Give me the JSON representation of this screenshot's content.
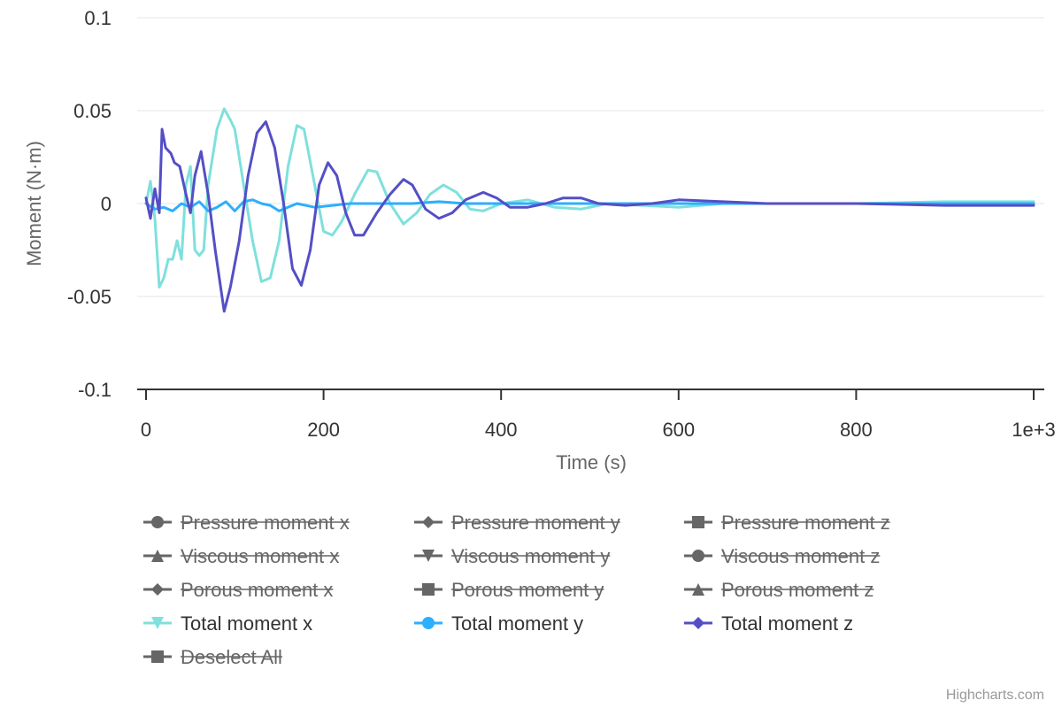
{
  "chart_data": {
    "type": "line",
    "xlabel": "Time (s)",
    "ylabel": "Moment (N·m)",
    "xlim": [
      0,
      1000
    ],
    "ylim": [
      -0.1,
      0.1
    ],
    "x_ticks": [
      "0",
      "200",
      "400",
      "600",
      "800",
      "1e+3"
    ],
    "y_ticks": [
      "0.1",
      "0.05",
      "0",
      "-0.05",
      "-0.1"
    ],
    "grid": "horizontal",
    "legend_placement": "bottom",
    "series": [
      {
        "name": "Total moment x",
        "color": "#7fe0dc",
        "visible": true,
        "marker": "triangle-down",
        "points": [
          [
            0,
            0.0
          ],
          [
            5,
            0.012
          ],
          [
            10,
            -0.008
          ],
          [
            15,
            -0.045
          ],
          [
            20,
            -0.04
          ],
          [
            25,
            -0.03
          ],
          [
            30,
            -0.03
          ],
          [
            35,
            -0.02
          ],
          [
            40,
            -0.03
          ],
          [
            45,
            0.01
          ],
          [
            50,
            0.02
          ],
          [
            55,
            -0.025
          ],
          [
            60,
            -0.028
          ],
          [
            65,
            -0.025
          ],
          [
            70,
            0.01
          ],
          [
            75,
            0.025
          ],
          [
            80,
            0.04
          ],
          [
            88,
            0.051
          ],
          [
            95,
            0.045
          ],
          [
            100,
            0.04
          ],
          [
            110,
            0.01
          ],
          [
            120,
            -0.02
          ],
          [
            130,
            -0.042
          ],
          [
            140,
            -0.04
          ],
          [
            150,
            -0.02
          ],
          [
            160,
            0.02
          ],
          [
            170,
            0.042
          ],
          [
            178,
            0.04
          ],
          [
            190,
            0.01
          ],
          [
            200,
            -0.015
          ],
          [
            210,
            -0.017
          ],
          [
            220,
            -0.01
          ],
          [
            235,
            0.005
          ],
          [
            250,
            0.018
          ],
          [
            260,
            0.017
          ],
          [
            275,
            0.0
          ],
          [
            290,
            -0.011
          ],
          [
            305,
            -0.005
          ],
          [
            320,
            0.005
          ],
          [
            335,
            0.01
          ],
          [
            350,
            0.006
          ],
          [
            365,
            -0.003
          ],
          [
            380,
            -0.004
          ],
          [
            400,
            0.0
          ],
          [
            430,
            0.002
          ],
          [
            460,
            -0.002
          ],
          [
            490,
            -0.003
          ],
          [
            520,
            0.0
          ],
          [
            560,
            -0.001
          ],
          [
            600,
            -0.002
          ],
          [
            650,
            0.0
          ],
          [
            700,
            0.0
          ],
          [
            800,
            0.0
          ],
          [
            900,
            0.001
          ],
          [
            1000,
            0.001
          ]
        ]
      },
      {
        "name": "Total moment y",
        "color": "#2caffe",
        "visible": true,
        "marker": "circle",
        "points": [
          [
            0,
            0.0
          ],
          [
            10,
            -0.003
          ],
          [
            20,
            -0.002
          ],
          [
            30,
            -0.004
          ],
          [
            40,
            0.0
          ],
          [
            50,
            -0.002
          ],
          [
            60,
            0.001
          ],
          [
            70,
            -0.004
          ],
          [
            80,
            -0.002
          ],
          [
            90,
            0.001
          ],
          [
            100,
            -0.004
          ],
          [
            110,
            0.001
          ],
          [
            120,
            0.002
          ],
          [
            130,
            0.0
          ],
          [
            140,
            -0.001
          ],
          [
            150,
            -0.004
          ],
          [
            170,
            0.0
          ],
          [
            190,
            -0.002
          ],
          [
            210,
            -0.001
          ],
          [
            230,
            0.0
          ],
          [
            250,
            0.0
          ],
          [
            280,
            0.0
          ],
          [
            300,
            0.0
          ],
          [
            330,
            0.001
          ],
          [
            360,
            0.0
          ],
          [
            400,
            0.0
          ],
          [
            500,
            0.0
          ],
          [
            600,
            0.0
          ],
          [
            700,
            0.0
          ],
          [
            800,
            0.0
          ],
          [
            900,
            0.0
          ],
          [
            1000,
            0.0
          ]
        ]
      },
      {
        "name": "Total moment z",
        "color": "#544fc5",
        "visible": true,
        "marker": "diamond",
        "points": [
          [
            0,
            0.003
          ],
          [
            5,
            -0.008
          ],
          [
            10,
            0.008
          ],
          [
            15,
            -0.005
          ],
          [
            18,
            0.04
          ],
          [
            22,
            0.03
          ],
          [
            28,
            0.027
          ],
          [
            32,
            0.022
          ],
          [
            38,
            0.02
          ],
          [
            45,
            0.005
          ],
          [
            50,
            -0.005
          ],
          [
            55,
            0.015
          ],
          [
            62,
            0.028
          ],
          [
            70,
            0.005
          ],
          [
            78,
            -0.025
          ],
          [
            88,
            -0.058
          ],
          [
            95,
            -0.045
          ],
          [
            105,
            -0.02
          ],
          [
            115,
            0.015
          ],
          [
            125,
            0.038
          ],
          [
            135,
            0.044
          ],
          [
            145,
            0.03
          ],
          [
            155,
            0.0
          ],
          [
            165,
            -0.035
          ],
          [
            175,
            -0.044
          ],
          [
            185,
            -0.025
          ],
          [
            195,
            0.01
          ],
          [
            205,
            0.022
          ],
          [
            215,
            0.015
          ],
          [
            225,
            -0.005
          ],
          [
            235,
            -0.017
          ],
          [
            245,
            -0.017
          ],
          [
            260,
            -0.005
          ],
          [
            275,
            0.005
          ],
          [
            290,
            0.013
          ],
          [
            300,
            0.01
          ],
          [
            315,
            -0.003
          ],
          [
            330,
            -0.008
          ],
          [
            345,
            -0.005
          ],
          [
            360,
            0.002
          ],
          [
            380,
            0.006
          ],
          [
            395,
            0.003
          ],
          [
            410,
            -0.002
          ],
          [
            430,
            -0.002
          ],
          [
            450,
            0.0
          ],
          [
            470,
            0.003
          ],
          [
            490,
            0.003
          ],
          [
            510,
            0.0
          ],
          [
            540,
            -0.001
          ],
          [
            570,
            0.0
          ],
          [
            600,
            0.002
          ],
          [
            650,
            0.001
          ],
          [
            700,
            0.0
          ],
          [
            800,
            0.0
          ],
          [
            900,
            -0.001
          ],
          [
            1000,
            -0.001
          ]
        ]
      }
    ]
  },
  "legend": {
    "items": [
      {
        "label": "Pressure moment x",
        "marker": "circle",
        "visible": false
      },
      {
        "label": "Pressure moment y",
        "marker": "diamond",
        "visible": false
      },
      {
        "label": "Pressure moment z",
        "marker": "square",
        "visible": false
      },
      {
        "label": "Viscous moment x",
        "marker": "triangle",
        "visible": false
      },
      {
        "label": "Viscous moment y",
        "marker": "triangle-down",
        "visible": false
      },
      {
        "label": "Viscous moment z",
        "marker": "circle",
        "visible": false
      },
      {
        "label": "Porous moment x",
        "marker": "diamond",
        "visible": false
      },
      {
        "label": "Porous moment y",
        "marker": "square",
        "visible": false
      },
      {
        "label": "Porous moment z",
        "marker": "triangle",
        "visible": false
      },
      {
        "label": "Total moment x",
        "marker": "triangle-down",
        "visible": true,
        "color": "#7fe0dc"
      },
      {
        "label": "Total moment y",
        "marker": "circle",
        "visible": true,
        "color": "#2caffe"
      },
      {
        "label": "Total moment z",
        "marker": "diamond",
        "visible": true,
        "color": "#544fc5"
      },
      {
        "label": "Deselect All",
        "marker": "square",
        "visible": false
      }
    ],
    "hidden_color": "#666666"
  },
  "credits": "Highcharts.com"
}
